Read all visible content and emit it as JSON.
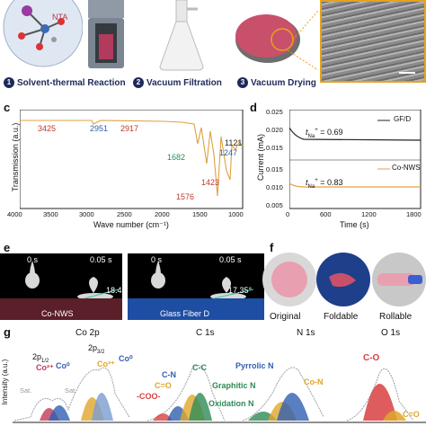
{
  "panel_a": {
    "nta_label": "NTA",
    "steps": [
      {
        "num": "1",
        "label": "Solvent-thermal Reaction"
      },
      {
        "num": "2",
        "label": "Vacuum Filtration"
      },
      {
        "num": "3",
        "label": "Vacuum Drying"
      }
    ]
  },
  "panel_c": {
    "letter": "c",
    "ylabel": "Transmission (a.u.)",
    "xlabel": "Wave number (cm⁻¹)",
    "xticks": [
      "4000",
      "3500",
      "3000",
      "2500",
      "2000",
      "1500",
      "1000"
    ],
    "peaks": {
      "p3425": "3425",
      "p2951": "2951",
      "p2917": "2917",
      "p1682": "1682",
      "p1576": "1576",
      "p1423": "1423",
      "p1247": "1247",
      "p1121": "1121"
    }
  },
  "panel_d": {
    "letter": "d",
    "ylabel": "Current (mA)",
    "xlabel": "Time (s)",
    "yticks_top": [
      "0.025",
      "0.020",
      "0.015"
    ],
    "yticks_bottom": [
      "0.015",
      "0.010",
      "0.005"
    ],
    "xticks": [
      "0",
      "600",
      "1200",
      "1800"
    ],
    "legend_top": "GF/D",
    "legend_bottom": "Co-NWS",
    "t_top": "= 0.69",
    "t_bottom": "= 0.83",
    "t_symbol": "t",
    "t_sub": "Na",
    "t_sup": "+",
    "colors": {
      "gfd": "#222222",
      "conws": "#e8a040"
    }
  },
  "panel_e": {
    "letter": "e",
    "left_t0": "0 s",
    "left_t1": "0.05 s",
    "left_angle": "18.43°",
    "left_label": "Co-NWS",
    "right_t0": "0 s",
    "right_t1": "0.05 s",
    "right_angle": "17.35°",
    "right_label": "Glass Fiber D"
  },
  "panel_f": {
    "letter": "f",
    "labels": [
      "Original",
      "Foldable",
      "Rollable"
    ]
  },
  "panel_g": {
    "letter": "g",
    "ylabel": "Intensity (a.u.)",
    "titles": [
      "Co 2p",
      "C 1s",
      "N 1s",
      "O 1s"
    ],
    "co": {
      "p12": "2p",
      "p12_sub": "1/2",
      "p32": "2p",
      "p32_sub": "3/2",
      "co2": "Co²⁺",
      "co0a": "Co⁰",
      "co3": "Co³⁺",
      "co0b": "Co⁰",
      "sat1": "Sat.",
      "sat2": "Sat."
    },
    "c": {
      "coo": "-COO-",
      "ceo": "C=O",
      "cn": "C-N",
      "cc": "C-C"
    },
    "n": {
      "pyrrolic": "Pyrrolic N",
      "graphitic": "Graphitic N",
      "oxidation": "Oxidation N",
      "con": "Co-N"
    },
    "o": {
      "co": "C-O",
      "ceo": "C=O"
    }
  }
}
